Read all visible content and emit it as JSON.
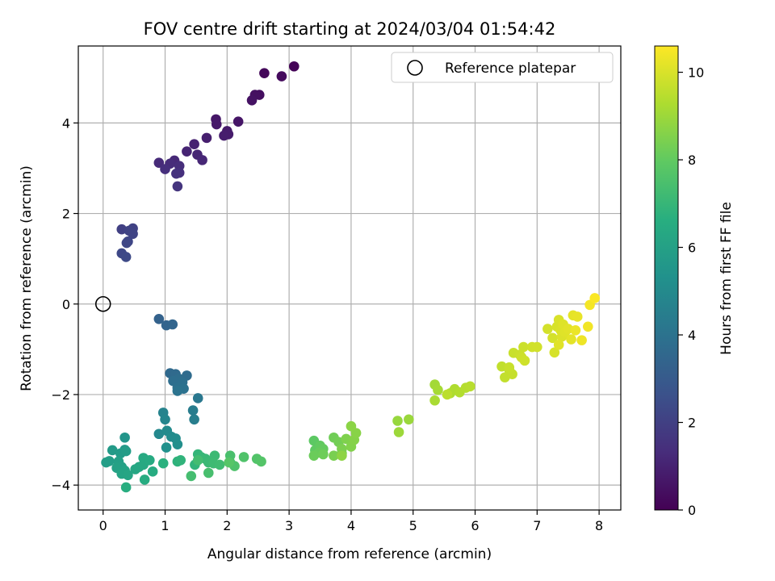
{
  "chart_data": {
    "type": "scatter",
    "title": "FOV centre drift starting at 2024/03/04 01:54:42",
    "xlabel": "Angular distance from reference (arcmin)",
    "ylabel": "Rotation from reference (arcmin)",
    "xlim": [
      -0.4,
      8.35
    ],
    "ylim": [
      -4.55,
      5.7
    ],
    "xticks": [
      0,
      1,
      2,
      3,
      4,
      5,
      6,
      7,
      8
    ],
    "yticks": [
      -4,
      -2,
      0,
      2,
      4
    ],
    "grid": true,
    "legend": {
      "placement": "top-right",
      "entries": [
        "Reference platepar"
      ]
    },
    "reference_point": {
      "x": 0,
      "y": 0
    },
    "colorbar": {
      "label": "Hours from first FF file",
      "colormap": "viridis",
      "range": [
        0,
        10.6
      ],
      "ticks": [
        0,
        2,
        4,
        6,
        8,
        10
      ]
    },
    "points": [
      {
        "x": 3.08,
        "y": 5.25,
        "h": 0.1
      },
      {
        "x": 2.6,
        "y": 5.1,
        "h": 0.2
      },
      {
        "x": 2.88,
        "y": 5.03,
        "h": 0.3
      },
      {
        "x": 2.52,
        "y": 4.62,
        "h": 0.4
      },
      {
        "x": 2.45,
        "y": 4.62,
        "h": 0.45
      },
      {
        "x": 2.4,
        "y": 4.5,
        "h": 0.5
      },
      {
        "x": 2.18,
        "y": 4.03,
        "h": 0.6
      },
      {
        "x": 1.82,
        "y": 4.08,
        "h": 0.65
      },
      {
        "x": 1.83,
        "y": 3.97,
        "h": 0.7
      },
      {
        "x": 2.0,
        "y": 3.82,
        "h": 0.75
      },
      {
        "x": 2.02,
        "y": 3.75,
        "h": 0.8
      },
      {
        "x": 1.95,
        "y": 3.72,
        "h": 0.85
      },
      {
        "x": 1.67,
        "y": 3.67,
        "h": 0.9
      },
      {
        "x": 1.47,
        "y": 3.53,
        "h": 1.0
      },
      {
        "x": 1.35,
        "y": 3.37,
        "h": 1.05
      },
      {
        "x": 1.52,
        "y": 3.3,
        "h": 1.1
      },
      {
        "x": 1.6,
        "y": 3.18,
        "h": 1.15
      },
      {
        "x": 1.15,
        "y": 3.17,
        "h": 1.2
      },
      {
        "x": 0.9,
        "y": 3.12,
        "h": 1.25
      },
      {
        "x": 1.08,
        "y": 3.1,
        "h": 1.3
      },
      {
        "x": 1.23,
        "y": 3.05,
        "h": 1.35
      },
      {
        "x": 1.0,
        "y": 2.98,
        "h": 1.4
      },
      {
        "x": 1.23,
        "y": 2.9,
        "h": 1.45
      },
      {
        "x": 1.18,
        "y": 2.88,
        "h": 1.5
      },
      {
        "x": 1.2,
        "y": 2.6,
        "h": 1.6
      },
      {
        "x": 0.3,
        "y": 1.65,
        "h": 2.0
      },
      {
        "x": 0.48,
        "y": 1.67,
        "h": 2.05
      },
      {
        "x": 0.42,
        "y": 1.62,
        "h": 2.1
      },
      {
        "x": 0.48,
        "y": 1.55,
        "h": 2.15
      },
      {
        "x": 0.4,
        "y": 1.38,
        "h": 2.2
      },
      {
        "x": 0.38,
        "y": 1.35,
        "h": 2.25
      },
      {
        "x": 0.3,
        "y": 1.12,
        "h": 2.3
      },
      {
        "x": 0.37,
        "y": 1.04,
        "h": 2.35
      },
      {
        "x": 0.9,
        "y": -0.33,
        "h": 3.3
      },
      {
        "x": 1.02,
        "y": -0.47,
        "h": 3.4
      },
      {
        "x": 1.12,
        "y": -0.45,
        "h": 3.45
      },
      {
        "x": 1.08,
        "y": -1.53,
        "h": 3.6
      },
      {
        "x": 1.17,
        "y": -1.55,
        "h": 3.65
      },
      {
        "x": 1.35,
        "y": -1.58,
        "h": 3.7
      },
      {
        "x": 1.22,
        "y": -1.65,
        "h": 3.75
      },
      {
        "x": 1.13,
        "y": -1.7,
        "h": 3.8
      },
      {
        "x": 1.28,
        "y": -1.73,
        "h": 3.85
      },
      {
        "x": 1.2,
        "y": -1.85,
        "h": 3.9
      },
      {
        "x": 1.3,
        "y": -1.87,
        "h": 3.95
      },
      {
        "x": 1.2,
        "y": -1.92,
        "h": 4.0
      },
      {
        "x": 1.53,
        "y": -2.08,
        "h": 4.2
      },
      {
        "x": 1.45,
        "y": -2.35,
        "h": 4.4
      },
      {
        "x": 1.47,
        "y": -2.55,
        "h": 4.5
      },
      {
        "x": 0.97,
        "y": -2.4,
        "h": 4.7
      },
      {
        "x": 1.0,
        "y": -2.55,
        "h": 4.8
      },
      {
        "x": 0.9,
        "y": -2.87,
        "h": 4.9
      },
      {
        "x": 1.03,
        "y": -2.8,
        "h": 5.0
      },
      {
        "x": 1.1,
        "y": -2.93,
        "h": 5.05
      },
      {
        "x": 1.17,
        "y": -2.97,
        "h": 5.1
      },
      {
        "x": 1.2,
        "y": -3.1,
        "h": 5.2
      },
      {
        "x": 1.02,
        "y": -3.17,
        "h": 5.3
      },
      {
        "x": 0.35,
        "y": -2.95,
        "h": 5.5
      },
      {
        "x": 0.35,
        "y": -3.22,
        "h": 5.6
      },
      {
        "x": 0.15,
        "y": -3.23,
        "h": 5.7
      },
      {
        "x": 0.28,
        "y": -3.3,
        "h": 5.75
      },
      {
        "x": 0.37,
        "y": -3.25,
        "h": 5.8
      },
      {
        "x": 0.1,
        "y": -3.47,
        "h": 5.85
      },
      {
        "x": 0.05,
        "y": -3.5,
        "h": 5.9
      },
      {
        "x": 0.25,
        "y": -3.48,
        "h": 5.95
      },
      {
        "x": 0.3,
        "y": -3.6,
        "h": 6.0
      },
      {
        "x": 0.22,
        "y": -3.62,
        "h": 6.05
      },
      {
        "x": 0.35,
        "y": -3.68,
        "h": 6.1
      },
      {
        "x": 0.3,
        "y": -3.75,
        "h": 6.15
      },
      {
        "x": 0.4,
        "y": -3.78,
        "h": 6.2
      },
      {
        "x": 0.52,
        "y": -3.65,
        "h": 6.25
      },
      {
        "x": 0.58,
        "y": -3.6,
        "h": 6.3
      },
      {
        "x": 0.65,
        "y": -3.55,
        "h": 6.35
      },
      {
        "x": 0.65,
        "y": -3.4,
        "h": 6.4
      },
      {
        "x": 0.75,
        "y": -3.45,
        "h": 6.45
      },
      {
        "x": 0.8,
        "y": -3.7,
        "h": 6.5
      },
      {
        "x": 0.67,
        "y": -3.88,
        "h": 6.55
      },
      {
        "x": 0.37,
        "y": -4.05,
        "h": 6.6
      },
      {
        "x": 0.97,
        "y": -3.52,
        "h": 6.7
      },
      {
        "x": 1.2,
        "y": -3.48,
        "h": 6.8
      },
      {
        "x": 1.25,
        "y": -3.45,
        "h": 6.85
      },
      {
        "x": 1.48,
        "y": -3.55,
        "h": 6.9
      },
      {
        "x": 1.53,
        "y": -3.32,
        "h": 6.95
      },
      {
        "x": 1.58,
        "y": -3.38,
        "h": 7.0
      },
      {
        "x": 1.65,
        "y": -3.42,
        "h": 7.05
      },
      {
        "x": 1.7,
        "y": -3.5,
        "h": 7.1
      },
      {
        "x": 1.8,
        "y": -3.35,
        "h": 7.15
      },
      {
        "x": 1.78,
        "y": -3.52,
        "h": 7.2
      },
      {
        "x": 1.88,
        "y": -3.55,
        "h": 7.25
      },
      {
        "x": 1.53,
        "y": -3.45,
        "h": 7.3
      },
      {
        "x": 1.42,
        "y": -3.8,
        "h": 7.35
      },
      {
        "x": 1.7,
        "y": -3.73,
        "h": 7.4
      },
      {
        "x": 2.05,
        "y": -3.35,
        "h": 7.45
      },
      {
        "x": 2.05,
        "y": -3.5,
        "h": 7.5
      },
      {
        "x": 2.12,
        "y": -3.58,
        "h": 7.55
      },
      {
        "x": 2.27,
        "y": -3.38,
        "h": 7.6
      },
      {
        "x": 2.48,
        "y": -3.42,
        "h": 7.65
      },
      {
        "x": 2.55,
        "y": -3.48,
        "h": 7.7
      },
      {
        "x": 2.03,
        "y": -3.5,
        "h": 7.75
      },
      {
        "x": 3.4,
        "y": -3.02,
        "h": 7.9
      },
      {
        "x": 3.42,
        "y": -3.23,
        "h": 7.95
      },
      {
        "x": 3.5,
        "y": -3.13,
        "h": 8.0
      },
      {
        "x": 3.55,
        "y": -3.2,
        "h": 8.05
      },
      {
        "x": 3.48,
        "y": -3.28,
        "h": 8.1
      },
      {
        "x": 3.4,
        "y": -3.35,
        "h": 8.15
      },
      {
        "x": 3.55,
        "y": -3.32,
        "h": 8.2
      },
      {
        "x": 3.72,
        "y": -2.95,
        "h": 8.25
      },
      {
        "x": 3.8,
        "y": -3.05,
        "h": 8.3
      },
      {
        "x": 3.85,
        "y": -3.3,
        "h": 8.35
      },
      {
        "x": 3.72,
        "y": -3.35,
        "h": 8.4
      },
      {
        "x": 3.85,
        "y": -3.2,
        "h": 8.45
      },
      {
        "x": 3.92,
        "y": -2.98,
        "h": 8.5
      },
      {
        "x": 4.0,
        "y": -3.15,
        "h": 8.55
      },
      {
        "x": 4.05,
        "y": -3.0,
        "h": 8.6
      },
      {
        "x": 4.08,
        "y": -2.85,
        "h": 8.65
      },
      {
        "x": 4.0,
        "y": -2.7,
        "h": 8.7
      },
      {
        "x": 3.85,
        "y": -3.35,
        "h": 8.75
      },
      {
        "x": 4.75,
        "y": -2.58,
        "h": 8.9
      },
      {
        "x": 4.93,
        "y": -2.55,
        "h": 8.95
      },
      {
        "x": 4.77,
        "y": -2.83,
        "h": 9.0
      },
      {
        "x": 5.35,
        "y": -1.78,
        "h": 9.1
      },
      {
        "x": 5.4,
        "y": -1.9,
        "h": 9.15
      },
      {
        "x": 5.35,
        "y": -2.13,
        "h": 9.2
      },
      {
        "x": 5.6,
        "y": -1.97,
        "h": 9.25
      },
      {
        "x": 5.67,
        "y": -1.88,
        "h": 9.3
      },
      {
        "x": 5.75,
        "y": -1.95,
        "h": 9.35
      },
      {
        "x": 5.85,
        "y": -1.85,
        "h": 9.4
      },
      {
        "x": 5.92,
        "y": -1.82,
        "h": 9.45
      },
      {
        "x": 5.55,
        "y": -2.0,
        "h": 9.5
      },
      {
        "x": 6.43,
        "y": -1.38,
        "h": 9.6
      },
      {
        "x": 6.48,
        "y": -1.62,
        "h": 9.62
      },
      {
        "x": 6.55,
        "y": -1.45,
        "h": 9.65
      },
      {
        "x": 6.6,
        "y": -1.55,
        "h": 9.68
      },
      {
        "x": 6.55,
        "y": -1.4,
        "h": 9.7
      },
      {
        "x": 6.62,
        "y": -1.08,
        "h": 9.72
      },
      {
        "x": 6.72,
        "y": -1.12,
        "h": 9.75
      },
      {
        "x": 6.78,
        "y": -0.95,
        "h": 9.78
      },
      {
        "x": 6.75,
        "y": -1.18,
        "h": 9.8
      },
      {
        "x": 6.8,
        "y": -1.25,
        "h": 9.82
      },
      {
        "x": 6.92,
        "y": -0.95,
        "h": 9.85
      },
      {
        "x": 7.0,
        "y": -0.95,
        "h": 9.87
      },
      {
        "x": 7.17,
        "y": -0.55,
        "h": 9.9
      },
      {
        "x": 7.25,
        "y": -0.75,
        "h": 9.92
      },
      {
        "x": 7.28,
        "y": -1.07,
        "h": 9.95
      },
      {
        "x": 7.32,
        "y": -0.5,
        "h": 9.97
      },
      {
        "x": 7.35,
        "y": -0.35,
        "h": 10.0
      },
      {
        "x": 7.38,
        "y": -0.58,
        "h": 10.02
      },
      {
        "x": 7.4,
        "y": -0.72,
        "h": 10.05
      },
      {
        "x": 7.42,
        "y": -0.45,
        "h": 10.08
      },
      {
        "x": 7.45,
        "y": -0.62,
        "h": 10.1
      },
      {
        "x": 7.35,
        "y": -0.9,
        "h": 10.12
      },
      {
        "x": 7.5,
        "y": -0.55,
        "h": 10.15
      },
      {
        "x": 7.55,
        "y": -0.78,
        "h": 10.18
      },
      {
        "x": 7.58,
        "y": -0.25,
        "h": 10.2
      },
      {
        "x": 7.65,
        "y": -0.28,
        "h": 10.25
      },
      {
        "x": 7.62,
        "y": -0.58,
        "h": 10.3
      },
      {
        "x": 7.72,
        "y": -0.8,
        "h": 10.35
      },
      {
        "x": 7.82,
        "y": -0.5,
        "h": 10.4
      },
      {
        "x": 7.85,
        "y": -0.02,
        "h": 10.45
      },
      {
        "x": 7.93,
        "y": 0.13,
        "h": 10.55
      }
    ]
  }
}
